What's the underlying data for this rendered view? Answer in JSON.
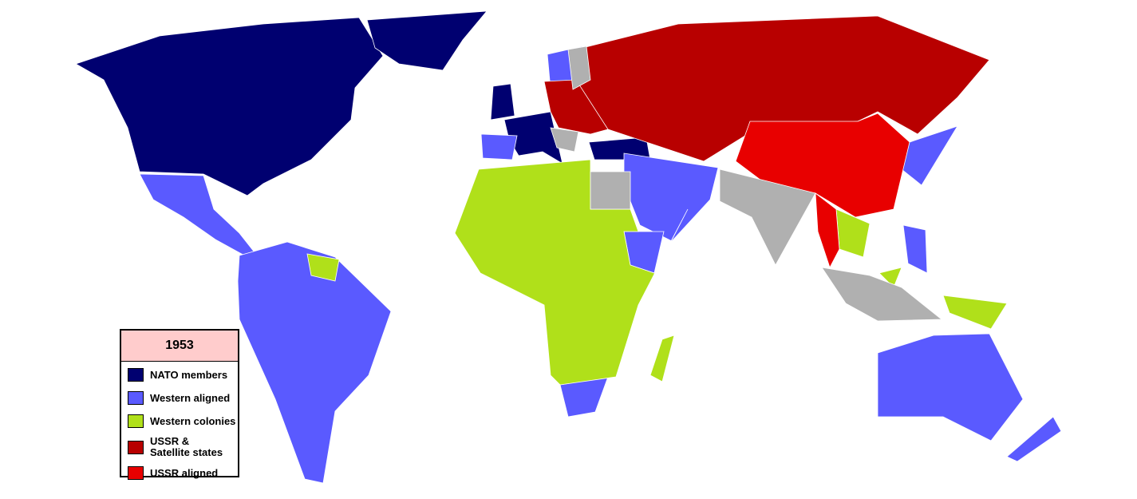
{
  "legend": {
    "title": "1953",
    "items": [
      {
        "label": "NATO members",
        "color": "#000070"
      },
      {
        "label": "Western aligned",
        "color": "#5a5aff"
      },
      {
        "label": "Western colonies",
        "color": "#b0e01a"
      },
      {
        "label": "USSR & Satellite states",
        "color": "#b80000"
      },
      {
        "label": "USSR aligned",
        "color": "#e80000"
      }
    ]
  },
  "neutral_color": "#b0b0b0"
}
